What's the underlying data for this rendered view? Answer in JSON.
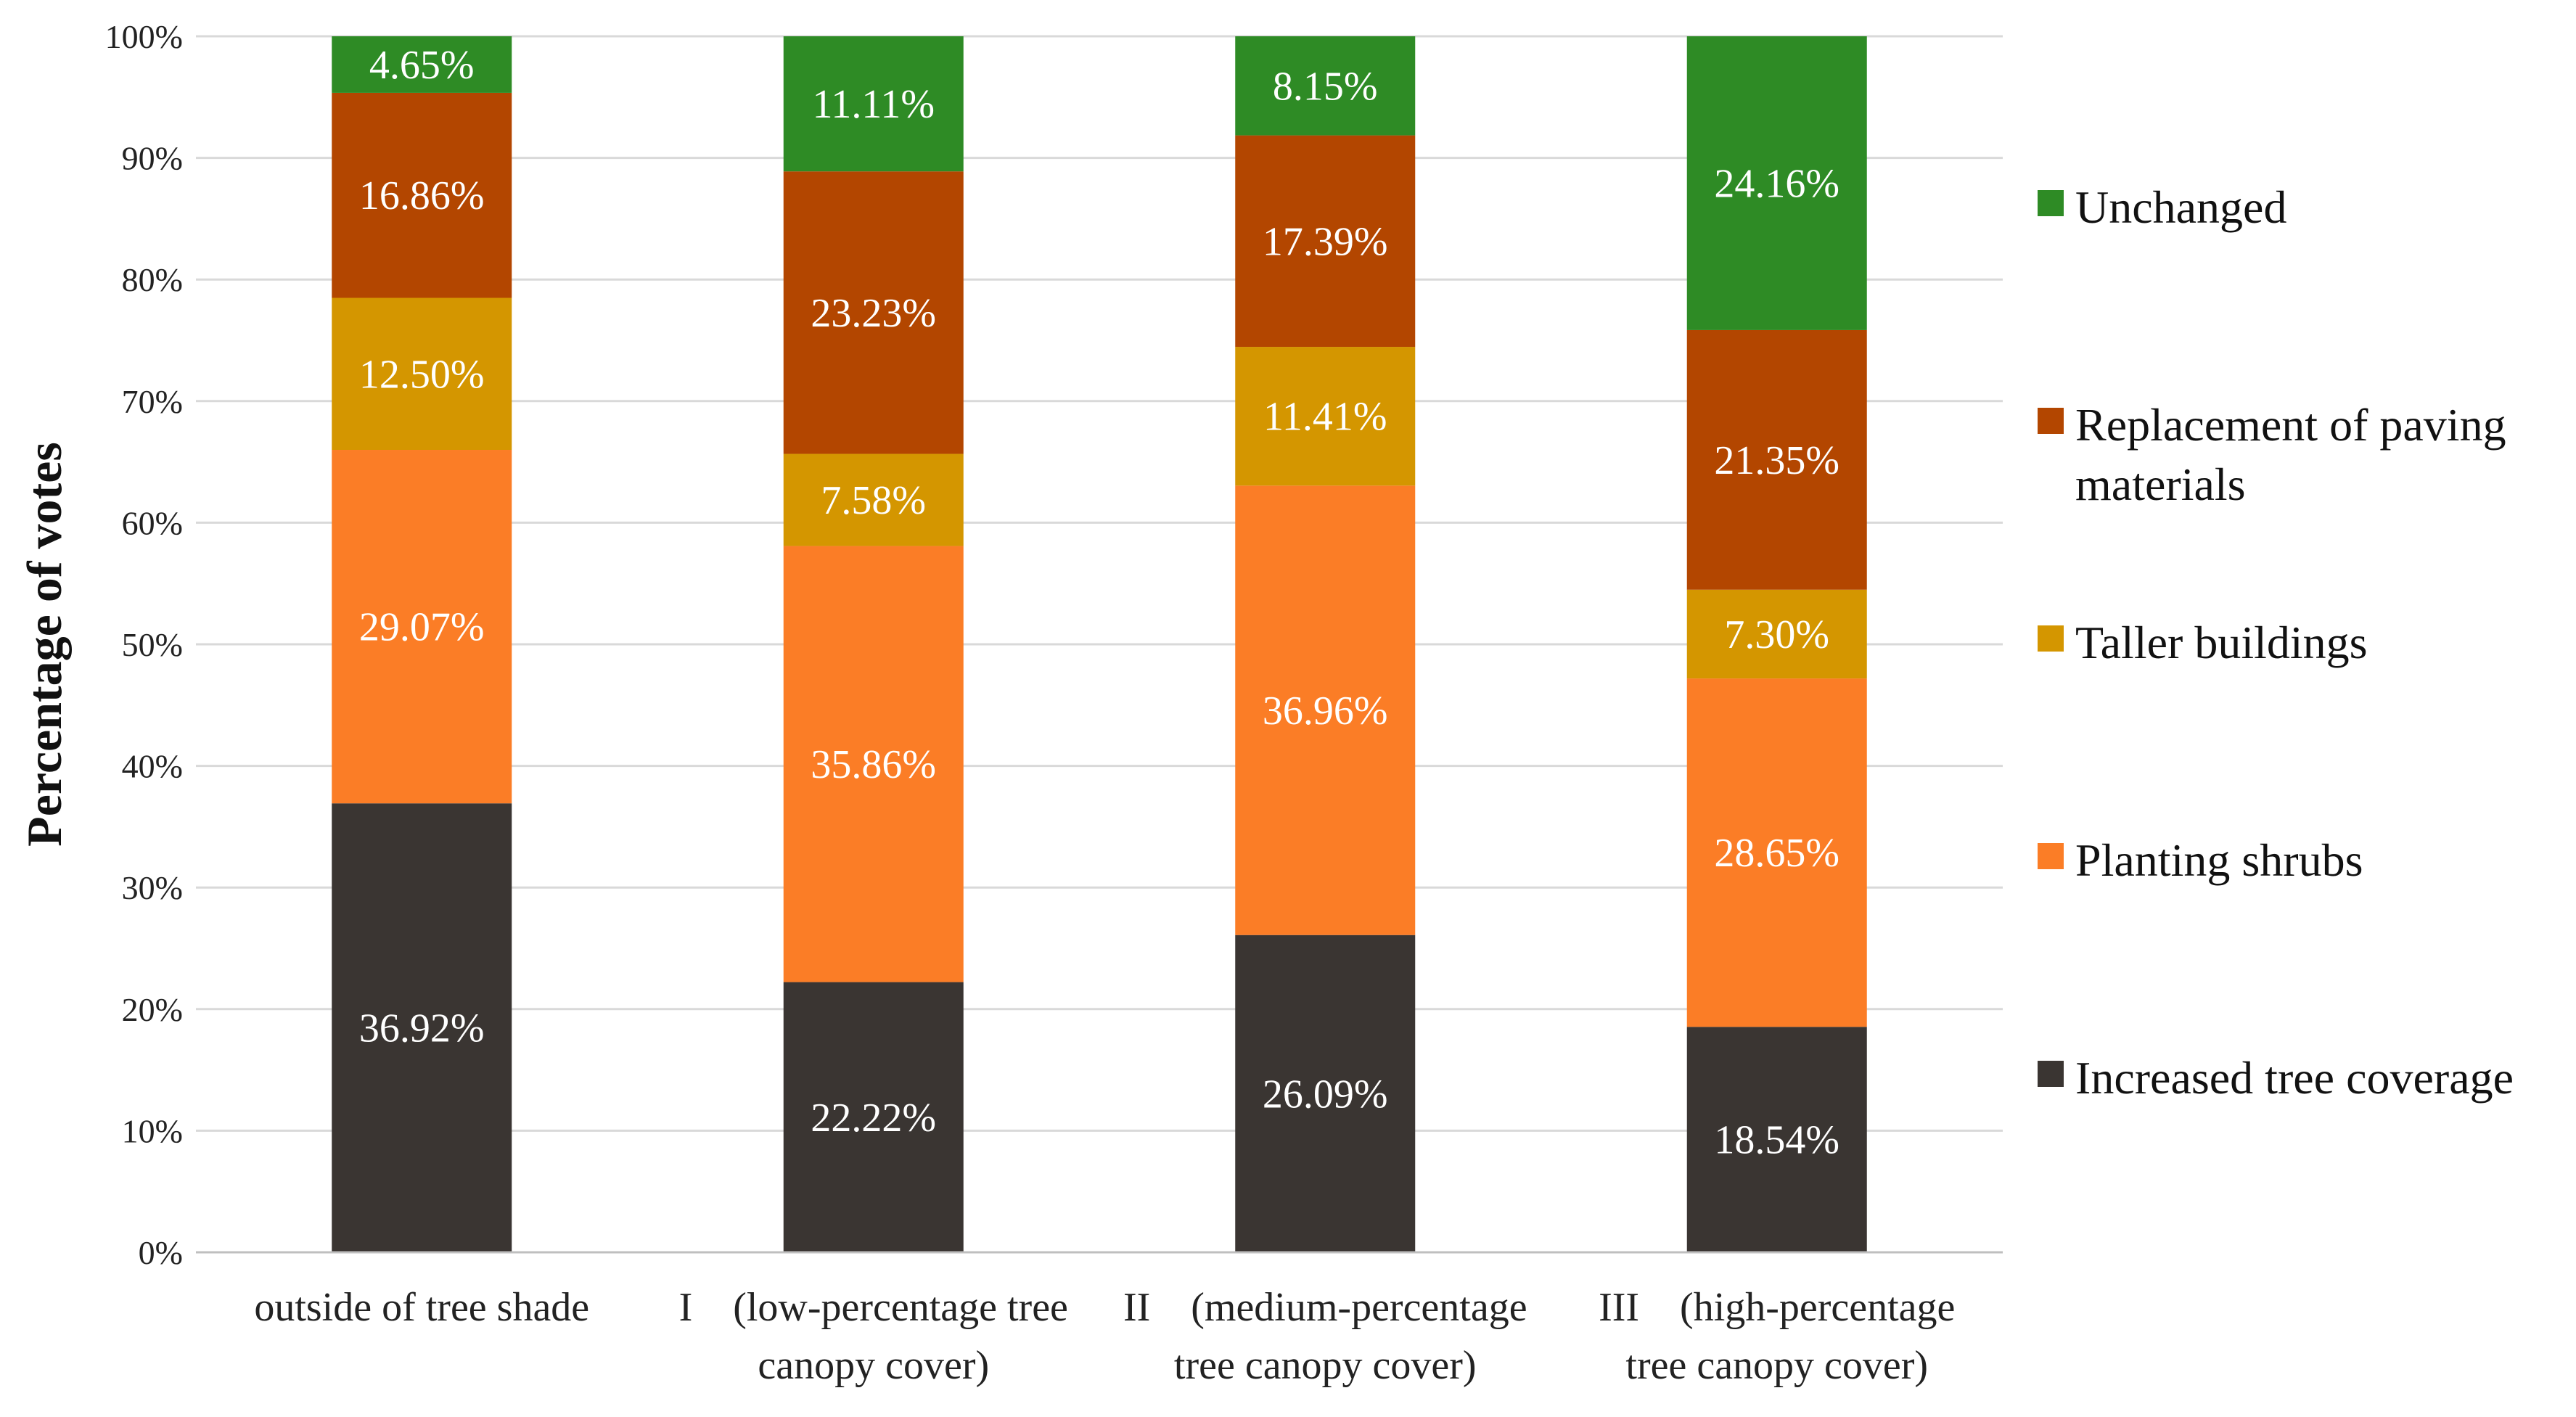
{
  "chart_data": {
    "type": "bar",
    "stacked": true,
    "title": "",
    "xlabel": "",
    "ylabel": "Percentage of votes",
    "ylim": [
      0,
      100
    ],
    "y_ticks": [
      "0%",
      "10%",
      "20%",
      "30%",
      "40%",
      "50%",
      "60%",
      "70%",
      "80%",
      "90%",
      "100%"
    ],
    "grid": true,
    "legend_position": "right",
    "categories": [
      [
        "outside of tree shade"
      ],
      [
        "I　(low-percentage tree",
        "canopy cover)"
      ],
      [
        "II　(medium-percentage",
        "tree canopy cover)"
      ],
      [
        "III　(high-percentage",
        "tree canopy cover)"
      ]
    ],
    "series": [
      {
        "name": "Increased tree coverage",
        "color": "#3a3532",
        "values": [
          36.92,
          22.22,
          26.09,
          18.54
        ],
        "labels": [
          "36.92%",
          "22.22%",
          "26.09%",
          "18.54%"
        ]
      },
      {
        "name": "Planting shrubs",
        "color": "#fb7d26",
        "values": [
          29.07,
          35.86,
          36.96,
          28.65
        ],
        "labels": [
          "29.07%",
          "35.86%",
          "36.96%",
          "28.65%"
        ]
      },
      {
        "name": "Taller buildings",
        "color": "#d49600",
        "values": [
          12.5,
          7.58,
          11.41,
          7.3
        ],
        "labels": [
          "12.50%",
          "7.58%",
          "11.41%",
          "7.30%"
        ]
      },
      {
        "name": "Replacement of paving materials",
        "legend_lines": [
          "Replacement of paving",
          "materials"
        ],
        "color": "#b34600",
        "values": [
          16.86,
          23.23,
          17.39,
          21.35
        ],
        "labels": [
          "16.86%",
          "23.23%",
          "17.39%",
          "21.35%"
        ]
      },
      {
        "name": "Unchanged",
        "color": "#2e8b25",
        "values": [
          4.65,
          11.11,
          8.15,
          24.16
        ],
        "labels": [
          "4.65%",
          "11.11%",
          "8.15%",
          "24.16%"
        ]
      }
    ]
  }
}
